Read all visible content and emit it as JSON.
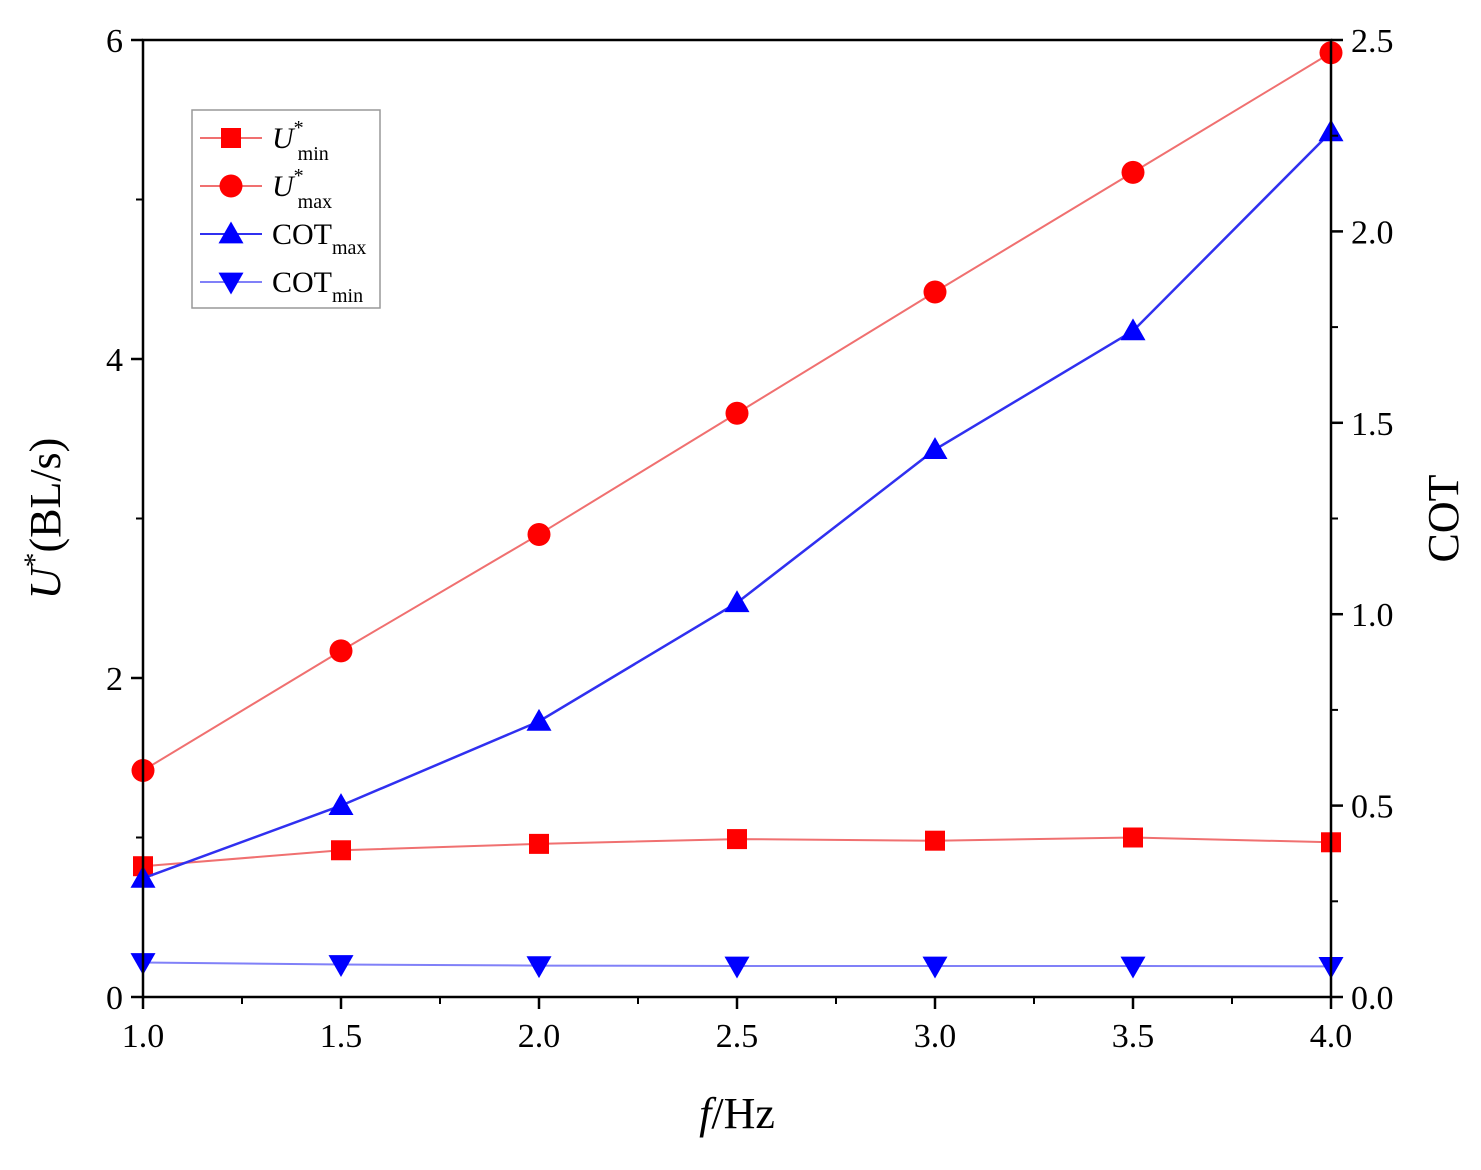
{
  "chart_data": {
    "type": "line",
    "x": [
      1.0,
      1.5,
      2.0,
      2.5,
      3.0,
      3.5,
      4.0
    ],
    "x_tick_labels": [
      "1.0",
      "1.5",
      "2.0",
      "2.5",
      "3.0",
      "3.5",
      "4.0"
    ],
    "xlim": [
      1.0,
      4.0
    ],
    "ylim_left": [
      0,
      6
    ],
    "y_left_ticks": [
      "0",
      "2",
      "4",
      "6"
    ],
    "ylim_right": [
      0,
      2.5
    ],
    "y_right_ticks": [
      "0.0",
      "0.5",
      "1.0",
      "1.5",
      "2.0",
      "2.5"
    ],
    "xlabel": {
      "var": "f",
      "rest": "/Hz"
    },
    "ylabel_left": {
      "var": "U",
      "sup": "*",
      "rest": "(BL/s)"
    },
    "ylabel_right": "COT",
    "grid": false,
    "legend_position": "top-left",
    "series": [
      {
        "name_main": "U",
        "name_sup": "*",
        "name_sub": "min",
        "italic": true,
        "axis": "left",
        "marker": "square",
        "color": "#ff0000",
        "line_color": "#f07070",
        "values": [
          0.82,
          0.92,
          0.96,
          0.99,
          0.98,
          1.0,
          0.97
        ]
      },
      {
        "name_main": "U",
        "name_sup": "*",
        "name_sub": "max",
        "italic": true,
        "axis": "left",
        "marker": "circle",
        "color": "#ff0000",
        "line_color": "#f07070",
        "values": [
          1.42,
          2.17,
          2.9,
          3.66,
          4.42,
          5.17,
          5.92
        ]
      },
      {
        "name_main": "COT",
        "name_sup": "",
        "name_sub": "max",
        "italic": false,
        "axis": "right",
        "marker": "triangle-up",
        "color": "#0000ff",
        "line_color": "#3030f0",
        "values": [
          0.31,
          0.5,
          0.72,
          1.03,
          1.43,
          1.74,
          2.26
        ]
      },
      {
        "name_main": "COT",
        "name_sup": "",
        "name_sub": "min",
        "italic": false,
        "axis": "right",
        "marker": "triangle-down",
        "color": "#0000ff",
        "line_color": "#8080f8",
        "values": [
          0.09,
          0.085,
          0.082,
          0.081,
          0.081,
          0.081,
          0.08
        ]
      }
    ]
  }
}
